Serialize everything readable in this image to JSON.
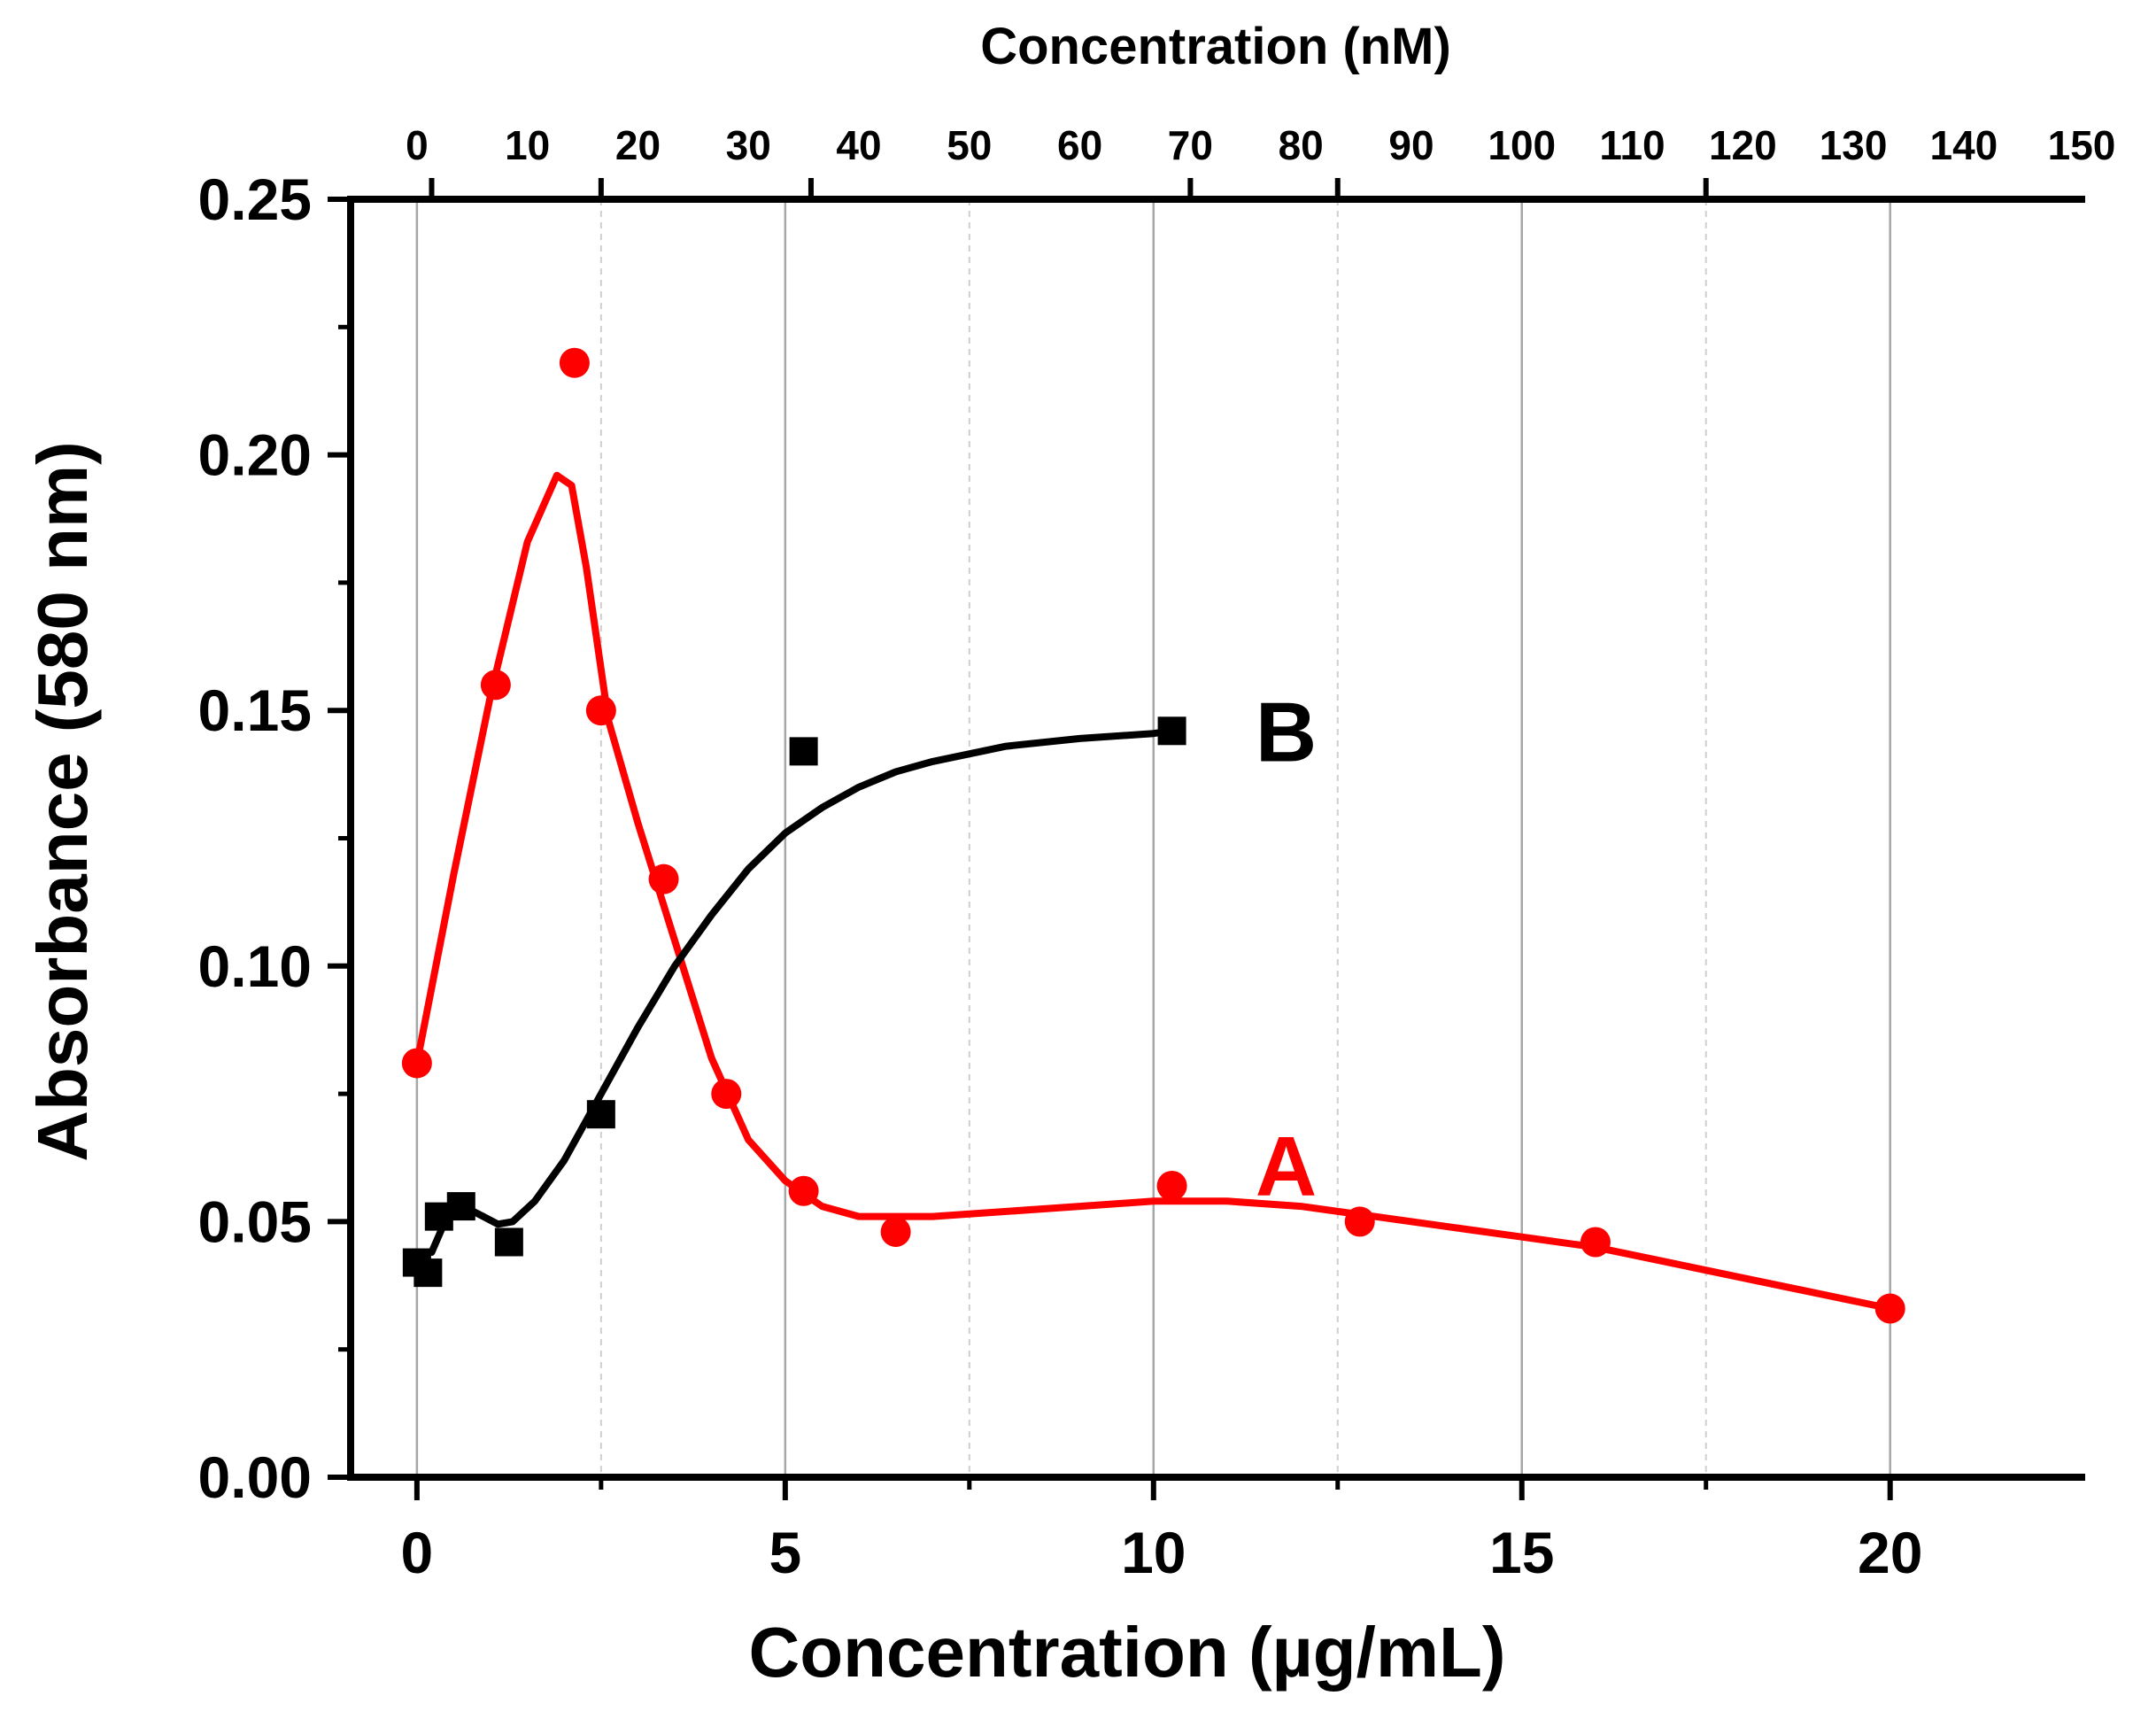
{
  "chart_data": {
    "type": "scatter",
    "xlabel": "Concentration (µg/mL)",
    "ylabel": "Absorbance (580 nm)",
    "x2label": "Concentration (nM)",
    "xlim": [
      -0.9,
      22.6
    ],
    "ylim": [
      0,
      0.25
    ],
    "x2lim": [
      0,
      150
    ],
    "x_ticks": [
      0,
      5,
      10,
      15,
      20
    ],
    "x_tick_labels": [
      "0",
      "5",
      "10",
      "15",
      "20"
    ],
    "x_minor_ticks": [
      2.5,
      7.5,
      12.5,
      17.5
    ],
    "y_ticks": [
      0,
      0.05,
      0.1,
      0.15,
      0.2,
      0.25
    ],
    "y_tick_labels": [
      "0.00",
      "0.05",
      "0.10",
      "0.15",
      "0.20",
      "0.25"
    ],
    "y_minor_ticks": [
      0.025,
      0.075,
      0.125,
      0.175,
      0.225
    ],
    "x2_ticks": [
      0,
      10,
      20,
      30,
      40,
      50,
      60,
      70,
      80,
      90,
      100,
      110,
      120,
      130,
      140,
      150
    ],
    "x2_tick_labels": [
      "0",
      "10",
      "20",
      "30",
      "40",
      "50",
      "60",
      "70",
      "80",
      "90",
      "100",
      "110",
      "120",
      "130",
      "140",
      "150"
    ],
    "x2_pos": [
      0.0,
      1.5,
      3.0,
      4.5,
      6.0,
      7.5,
      9.0,
      10.5,
      12.0,
      13.5,
      15.0,
      16.5,
      18.0,
      19.5,
      21.0,
      22.5
    ],
    "x2_label_pos": [
      0.0,
      1.5,
      3.0,
      4.5,
      6.0,
      7.5,
      9.0,
      10.5,
      12.0,
      13.5,
      15.0,
      16.5,
      18.0,
      19.5,
      21.0,
      22.6
    ],
    "x2_ticks_at": [
      0.2,
      2.5,
      5.35,
      10.5,
      12.5,
      17.5
    ],
    "grid": true,
    "series": [
      {
        "name": "A",
        "color": "#ff0000",
        "marker": "circle",
        "label_at": [
          11.8,
          0.061
        ],
        "x": [
          0,
          1.07,
          2.14,
          2.5,
          3.35,
          4.2,
          5.25,
          6.5,
          10.25,
          12.8,
          16.0,
          20.0
        ],
        "y": [
          0.081,
          0.155,
          0.218,
          0.15,
          0.117,
          0.075,
          0.056,
          0.048,
          0.057,
          0.05,
          0.046,
          0.033
        ],
        "curve_x": [
          0,
          0.5,
          1.0,
          1.5,
          1.9,
          2.1,
          2.3,
          2.6,
          3.0,
          3.5,
          4.0,
          4.5,
          5.0,
          5.5,
          6.0,
          7.0,
          8.0,
          9.0,
          10.0,
          11.0,
          12.0,
          13.0,
          14.0,
          15.0,
          16.0,
          17.0,
          18.0,
          19.0,
          20.0
        ],
        "curve_y": [
          0.081,
          0.118,
          0.153,
          0.183,
          0.196,
          0.194,
          0.178,
          0.148,
          0.128,
          0.105,
          0.082,
          0.066,
          0.058,
          0.053,
          0.051,
          0.051,
          0.052,
          0.053,
          0.054,
          0.054,
          0.053,
          0.051,
          0.049,
          0.047,
          0.045,
          0.042,
          0.039,
          0.036,
          0.033
        ]
      },
      {
        "name": "B",
        "color": "#000000",
        "marker": "square",
        "label_at": [
          11.8,
          0.146
        ],
        "x": [
          0,
          0.15,
          0.3,
          0.6,
          1.25,
          2.5,
          5.25,
          10.25
        ],
        "y": [
          0.042,
          0.04,
          0.051,
          0.053,
          0.046,
          0.071,
          0.142,
          0.146
        ],
        "curve_x": [
          0.2,
          0.35,
          0.5,
          0.7,
          0.9,
          1.1,
          1.3,
          1.6,
          2.0,
          2.5,
          3.0,
          3.5,
          4.0,
          4.5,
          5.0,
          5.5,
          6.0,
          6.5,
          7.0,
          8.0,
          9.0,
          10.0,
          10.25
        ],
        "curve_y": [
          0.044,
          0.049,
          0.052,
          0.0525,
          0.051,
          0.0495,
          0.05,
          0.054,
          0.062,
          0.075,
          0.088,
          0.1,
          0.11,
          0.119,
          0.126,
          0.131,
          0.135,
          0.138,
          0.14,
          0.143,
          0.1445,
          0.1455,
          0.146
        ]
      }
    ]
  }
}
